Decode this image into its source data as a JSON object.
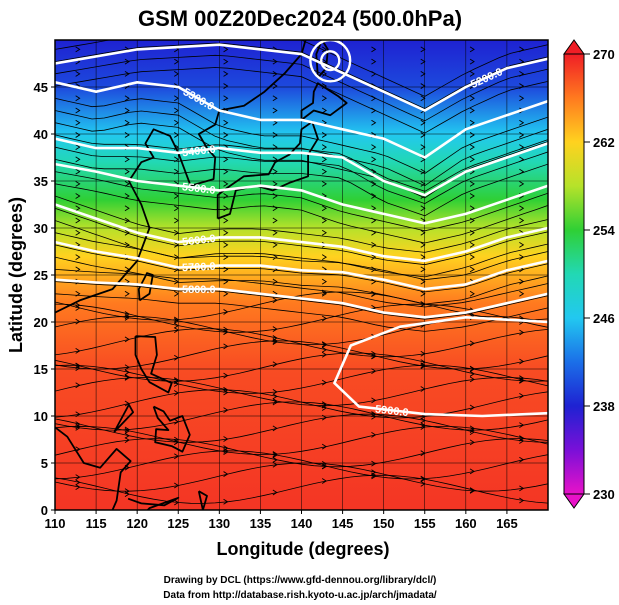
{
  "title": "GSM 00Z20Dec2024 (500.0hPa)",
  "footer": {
    "line1": "Drawing by DCL (https://www.gfd-dennou.org/library/dcl/)",
    "line2": "Data from http://database.rish.kyoto-u.ac.jp/arch/jmadata/"
  },
  "colors": {
    "contour": "#ffffff",
    "streamline": "#000000",
    "coastline": "#000000"
  },
  "chart_data": {
    "type": "heatmap",
    "title": "GSM 00Z20Dec2024 (500.0hPa)",
    "xlabel": "Longitude (degrees)",
    "ylabel": "Latitude  (degrees)",
    "xlim": [
      110,
      170
    ],
    "ylim": [
      0,
      50
    ],
    "x_ticks": [
      110,
      115,
      120,
      125,
      130,
      135,
      140,
      145,
      150,
      155,
      160,
      165
    ],
    "y_ticks": [
      0,
      5,
      10,
      15,
      20,
      25,
      30,
      35,
      40,
      45
    ],
    "grid": true,
    "shaded_variable_range": [
      230,
      270
    ],
    "colorbar": {
      "ticks": [
        230,
        238,
        246,
        254,
        262,
        270
      ],
      "stops": [
        {
          "value": 230,
          "color": "#e812c8"
        },
        {
          "value": 234,
          "color": "#7a10d8"
        },
        {
          "value": 238,
          "color": "#1e22d2"
        },
        {
          "value": 242,
          "color": "#1b6fe8"
        },
        {
          "value": 246,
          "color": "#22c8f0"
        },
        {
          "value": 250,
          "color": "#22d8b4"
        },
        {
          "value": 254,
          "color": "#2fd035"
        },
        {
          "value": 258,
          "color": "#b6e22a"
        },
        {
          "value": 262,
          "color": "#ffd21f"
        },
        {
          "value": 266,
          "color": "#ff7a1f"
        },
        {
          "value": 270,
          "color": "#f01e26"
        }
      ]
    },
    "field_bands": [
      {
        "lat": 50,
        "value": 238
      },
      {
        "lat": 45,
        "value": 240
      },
      {
        "lat": 40,
        "value": 246
      },
      {
        "lat": 37,
        "value": 250
      },
      {
        "lat": 33,
        "value": 254
      },
      {
        "lat": 30,
        "value": 258
      },
      {
        "lat": 27,
        "value": 262
      },
      {
        "lat": 22,
        "value": 266
      },
      {
        "lat": 15,
        "value": 268
      },
      {
        "lat": 0,
        "value": 269
      }
    ],
    "height_contours": [
      {
        "label": "5200.0",
        "points": [
          [
            110,
            47.5
          ],
          [
            120,
            49
          ],
          [
            130,
            49.5
          ],
          [
            140,
            48.5
          ],
          [
            145,
            46.5
          ],
          [
            150,
            44.5
          ],
          [
            155,
            42.5
          ],
          [
            160,
            45
          ],
          [
            165,
            47
          ],
          [
            170,
            48
          ]
        ]
      },
      {
        "label": "5300.0",
        "points": [
          [
            110,
            45.5
          ],
          [
            115,
            44.5
          ],
          [
            120,
            45.5
          ],
          [
            125,
            45
          ],
          [
            130,
            42.5
          ],
          [
            135,
            41.5
          ],
          [
            140,
            41.5
          ],
          [
            145,
            40.5
          ],
          [
            150,
            39.5
          ],
          [
            155,
            37.5
          ],
          [
            160,
            40.5
          ],
          [
            165,
            42
          ],
          [
            170,
            43.5
          ]
        ]
      },
      {
        "label": "5400.0",
        "points": [
          [
            110,
            39.5
          ],
          [
            115,
            38.5
          ],
          [
            120,
            38.5
          ],
          [
            125,
            38
          ],
          [
            130,
            38.5
          ],
          [
            135,
            38
          ],
          [
            140,
            38
          ],
          [
            145,
            37.5
          ],
          [
            150,
            35
          ],
          [
            155,
            33.5
          ],
          [
            160,
            36
          ],
          [
            165,
            37.5
          ],
          [
            170,
            39
          ]
        ]
      },
      {
        "label": "5500.0",
        "points": [
          [
            110,
            36.8
          ],
          [
            115,
            36
          ],
          [
            120,
            35
          ],
          [
            125,
            34.5
          ],
          [
            130,
            34
          ],
          [
            135,
            34.5
          ],
          [
            140,
            34
          ],
          [
            145,
            32.5
          ],
          [
            150,
            31.5
          ],
          [
            155,
            30.5
          ],
          [
            160,
            31.5
          ],
          [
            165,
            33
          ],
          [
            170,
            34.5
          ]
        ]
      },
      {
        "label": "5600.0",
        "points": [
          [
            110,
            32.5
          ],
          [
            115,
            31
          ],
          [
            120,
            29.5
          ],
          [
            125,
            28.5
          ],
          [
            130,
            29
          ],
          [
            135,
            29
          ],
          [
            140,
            28.5
          ],
          [
            145,
            28
          ],
          [
            150,
            27
          ],
          [
            155,
            26.5
          ],
          [
            160,
            27.5
          ],
          [
            165,
            29
          ],
          [
            170,
            30
          ]
        ]
      },
      {
        "label": "5700.0",
        "points": [
          [
            110,
            28.5
          ],
          [
            115,
            27.5
          ],
          [
            120,
            26.8
          ],
          [
            125,
            25.8
          ],
          [
            130,
            26
          ],
          [
            135,
            26
          ],
          [
            140,
            25.5
          ],
          [
            145,
            25.3
          ],
          [
            150,
            24.5
          ],
          [
            155,
            23.5
          ],
          [
            160,
            24
          ],
          [
            165,
            25.5
          ],
          [
            170,
            26.5
          ]
        ]
      },
      {
        "label": "5800.0",
        "points": [
          [
            110,
            24.5
          ],
          [
            115,
            24.2
          ],
          [
            120,
            24
          ],
          [
            125,
            23.5
          ],
          [
            130,
            23.5
          ],
          [
            135,
            23
          ],
          [
            140,
            22.5
          ],
          [
            145,
            22
          ],
          [
            150,
            21
          ],
          [
            155,
            20.5
          ],
          [
            160,
            21
          ],
          [
            165,
            22
          ],
          [
            170,
            23
          ]
        ]
      },
      {
        "label": "5900.0",
        "points": [
          [
            170,
            20
          ],
          [
            160,
            20.5
          ],
          [
            152,
            19.5
          ],
          [
            146,
            17.5
          ],
          [
            144,
            13.5
          ],
          [
            147,
            11
          ],
          [
            155,
            10.2
          ],
          [
            162,
            10
          ],
          [
            170,
            10.3
          ]
        ]
      }
    ],
    "closed_contours": [
      {
        "label": "",
        "center": [
          143.5,
          47.8
        ],
        "radius_deg": 2.2
      },
      {
        "label": "",
        "center": [
          143.5,
          47.8
        ],
        "radius_deg": 1.0
      }
    ]
  }
}
